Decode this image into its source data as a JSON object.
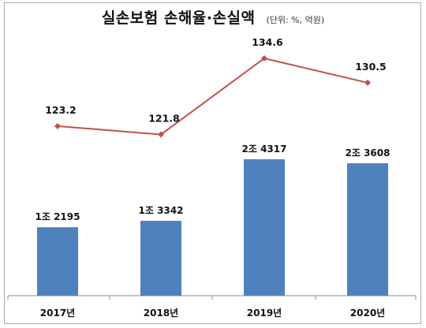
{
  "chart_data": {
    "type": "bar+line",
    "title": "실손보험 손해율·손실액",
    "unit_note": "(단위: %, 억원)",
    "categories": [
      "2017년",
      "2018년",
      "2019년",
      "2020년"
    ],
    "bar_series": {
      "values": [
        12195,
        13342,
        24317,
        23608
      ],
      "labels": [
        "1조 2195",
        "1조 3342",
        "2조 4317",
        "2조 3608"
      ]
    },
    "line_series": {
      "values": [
        123.2,
        121.8,
        134.6,
        130.5
      ],
      "labels": [
        "123.2",
        "121.8",
        "134.6",
        "130.5"
      ]
    },
    "colors": {
      "bar": "#4f81bd",
      "line": "#c0504d"
    },
    "grid": false,
    "legend": "none"
  }
}
